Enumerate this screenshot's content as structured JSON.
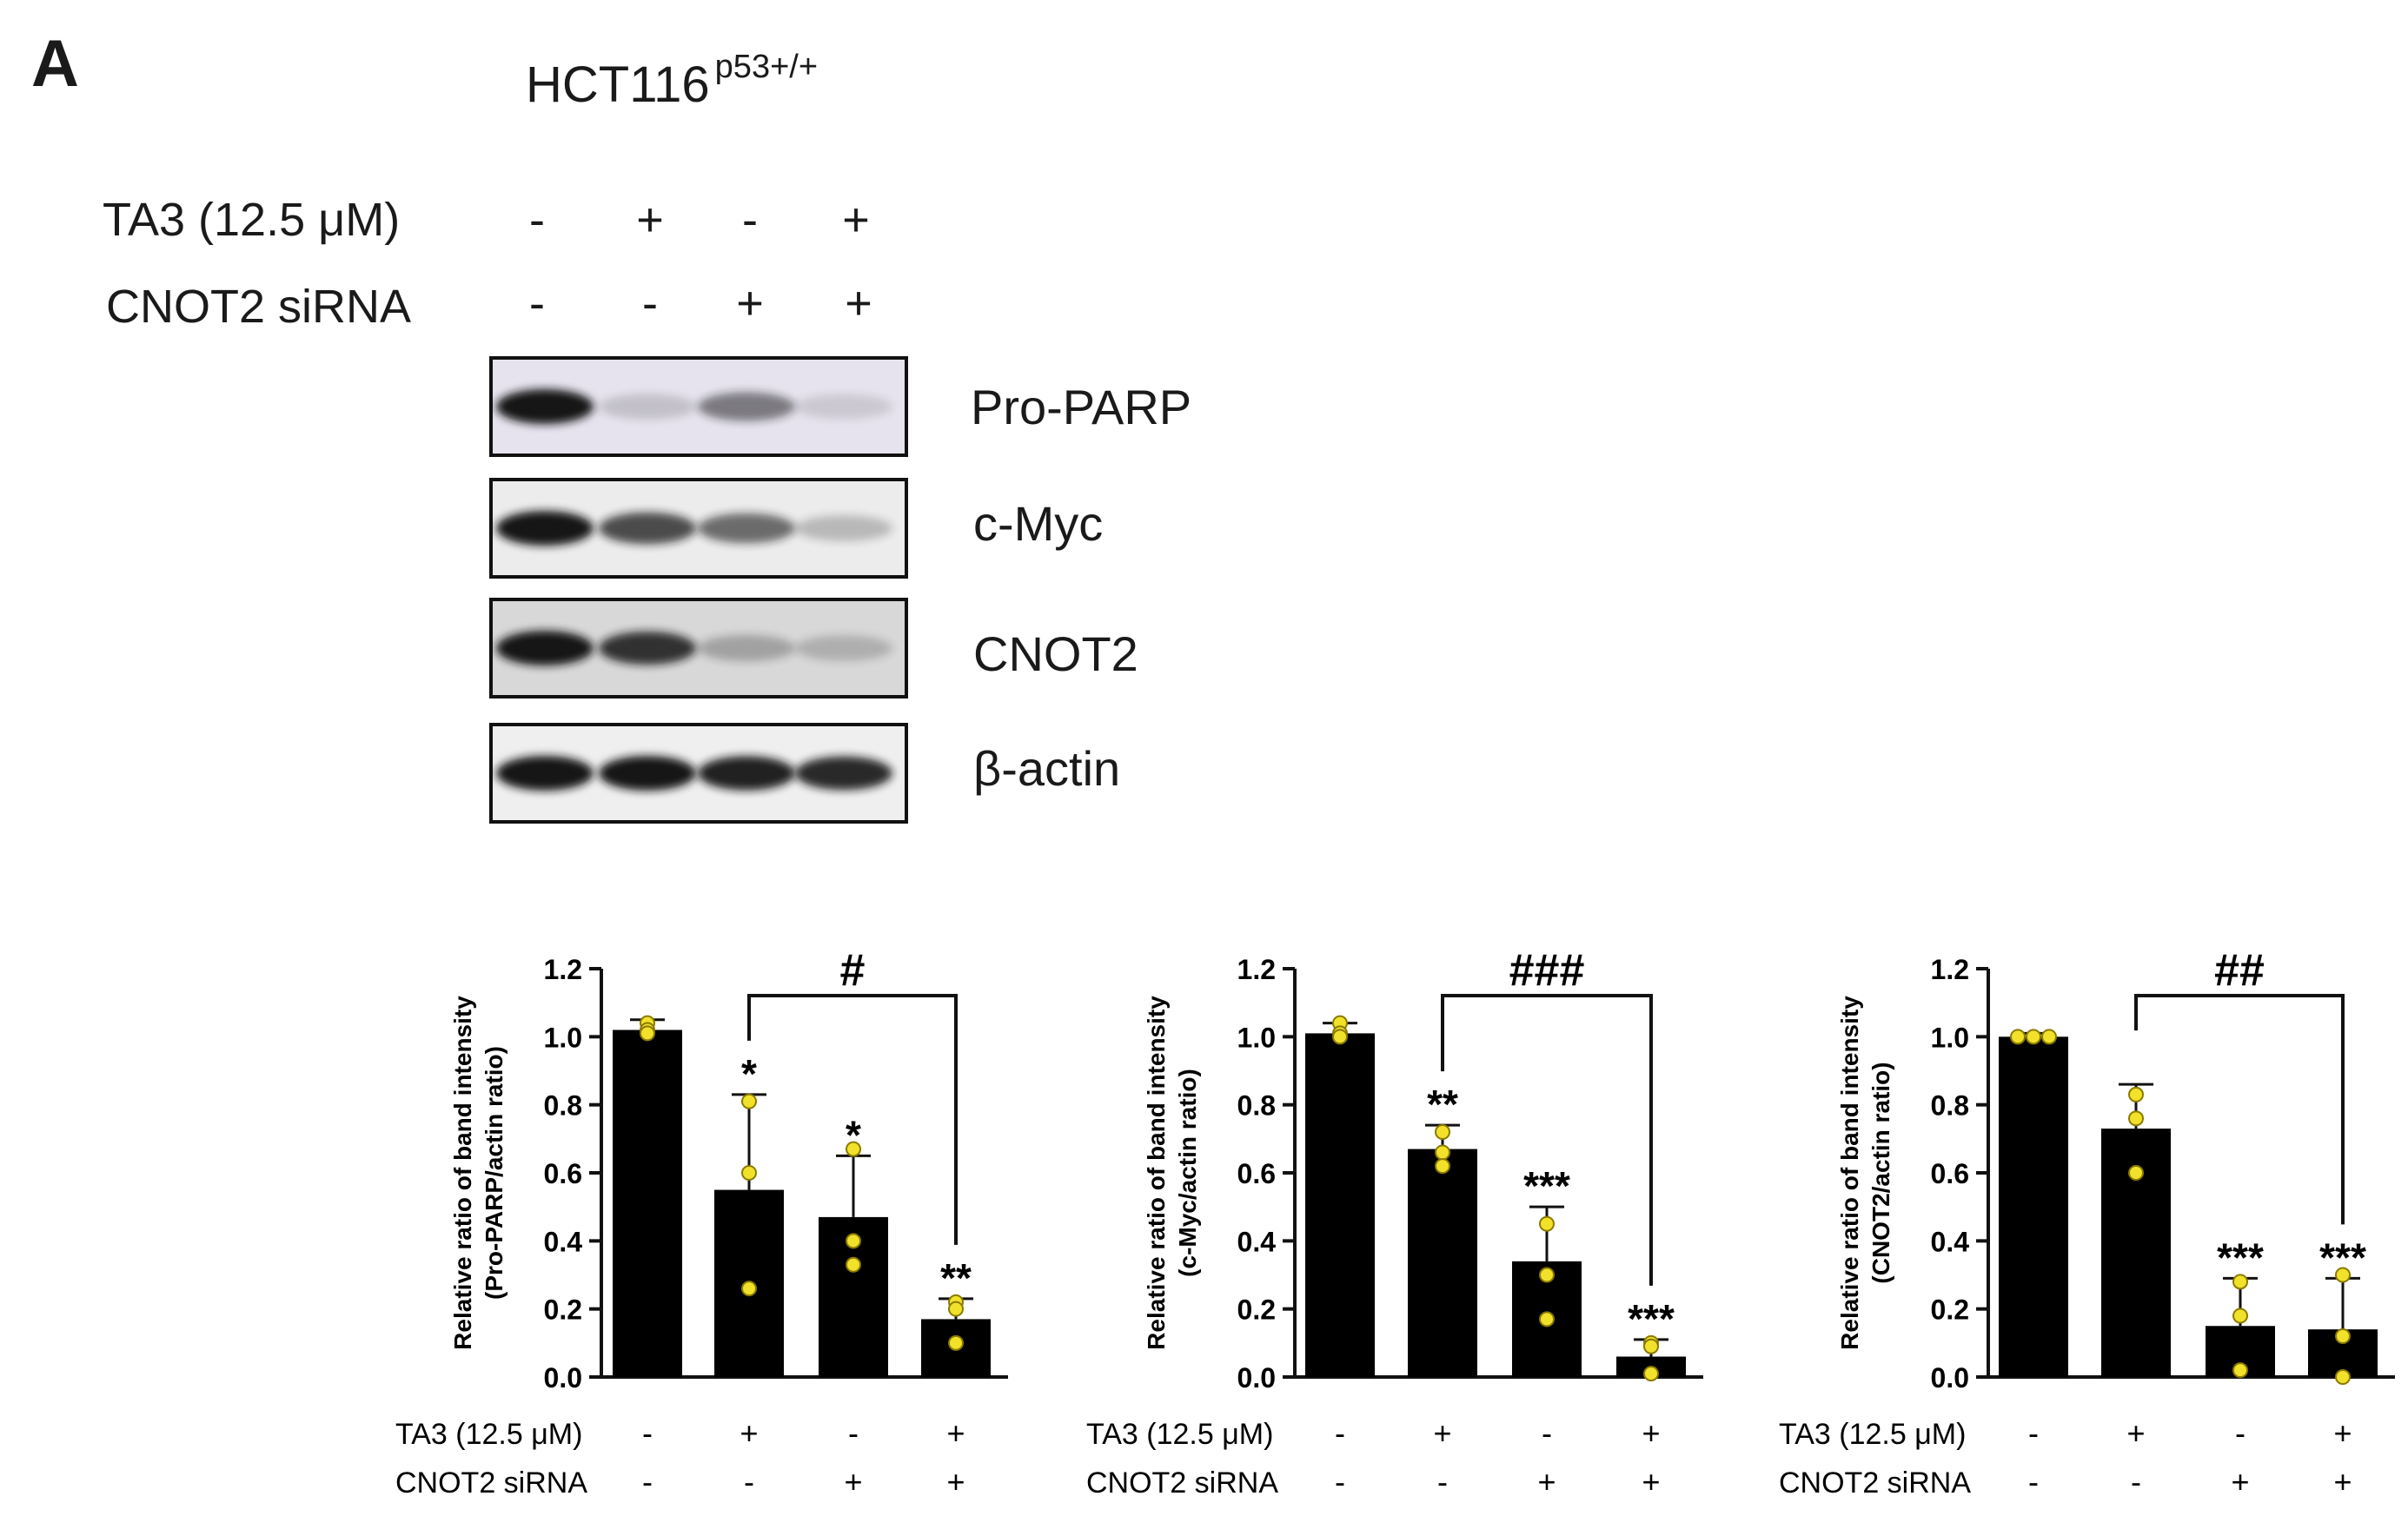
{
  "panel_letter": "A",
  "cell_line": {
    "name": "HCT116",
    "genotype": "p53+/+"
  },
  "conditions": [
    {
      "label": "TA3 (12.5 μM)",
      "symbols": [
        "-",
        "+",
        "-",
        "+"
      ]
    },
    {
      "label": "CNOT2 siRNA",
      "symbols": [
        "-",
        "-",
        "+",
        "+"
      ]
    }
  ],
  "blots": [
    {
      "label": "Pro-PARP",
      "bg": "#e6e3ee",
      "intensities": [
        1.0,
        0.08,
        0.45,
        0.03
      ]
    },
    {
      "label": "c-Myc",
      "bg": "#ececec",
      "intensities": [
        1.0,
        0.72,
        0.55,
        0.15
      ]
    },
    {
      "label": "CNOT2",
      "bg": "#d8d8d8",
      "intensities": [
        1.0,
        0.85,
        0.2,
        0.12
      ]
    },
    {
      "label": "β-actin",
      "bg": "#efefef",
      "intensities": [
        1.0,
        1.0,
        0.95,
        0.9
      ]
    }
  ],
  "colors": {
    "bar": "#000000",
    "point": "#f2e12a",
    "point_edge": "#8a7a00",
    "band": "#141414"
  },
  "chart_data": [
    {
      "type": "bar",
      "ylabel": [
        "Relative ratio of band intensity",
        "(Pro-PARP/actin ratio)"
      ],
      "ylim": [
        0,
        1.2
      ],
      "yticks": [
        "0.0",
        "0.2",
        "0.4",
        "0.6",
        "0.8",
        "1.0",
        "1.2"
      ],
      "values": [
        1.02,
        0.55,
        0.47,
        0.17
      ],
      "errors": [
        0.03,
        0.28,
        0.18,
        0.06
      ],
      "points": [
        [
          1.04,
          1.02,
          1.01
        ],
        [
          0.81,
          0.6,
          0.26
        ],
        [
          0.67,
          0.4,
          0.33
        ],
        [
          0.22,
          0.2,
          0.1
        ]
      ],
      "significance": [
        "",
        "*",
        "*",
        "**"
      ],
      "bracket": {
        "from": 1,
        "to": 3,
        "label": "#"
      },
      "rows": [
        {
          "label": "TA3 (12.5 μM)",
          "symbols": [
            "-",
            "+",
            "-",
            "+"
          ]
        },
        {
          "label": "CNOT2 siRNA",
          "symbols": [
            "-",
            "-",
            "+",
            "+"
          ]
        }
      ]
    },
    {
      "type": "bar",
      "ylabel": [
        "Relative ratio of band intensity",
        "(c-Myc/actin ratio)"
      ],
      "ylim": [
        0,
        1.2
      ],
      "yticks": [
        "0.0",
        "0.2",
        "0.4",
        "0.6",
        "0.8",
        "1.0",
        "1.2"
      ],
      "values": [
        1.01,
        0.67,
        0.34,
        0.06
      ],
      "errors": [
        0.03,
        0.07,
        0.16,
        0.05
      ],
      "points": [
        [
          1.04,
          1.01,
          1.0
        ],
        [
          0.72,
          0.66,
          0.62
        ],
        [
          0.45,
          0.3,
          0.17
        ],
        [
          0.1,
          0.09,
          0.01
        ]
      ],
      "significance": [
        "",
        "**",
        "***",
        "***"
      ],
      "bracket": {
        "from": 1,
        "to": 3,
        "label": "###"
      },
      "rows": [
        {
          "label": "TA3 (12.5 μM)",
          "symbols": [
            "-",
            "+",
            "-",
            "+"
          ]
        },
        {
          "label": "CNOT2 siRNA",
          "symbols": [
            "-",
            "-",
            "+",
            "+"
          ]
        }
      ]
    },
    {
      "type": "bar",
      "ylabel": [
        "Relative ratio of band intensity",
        "(CNOT2/actin ratio)"
      ],
      "ylim": [
        0,
        1.2
      ],
      "yticks": [
        "0.0",
        "0.2",
        "0.4",
        "0.6",
        "0.8",
        "1.0",
        "1.2"
      ],
      "values": [
        1.0,
        0.73,
        0.15,
        0.14
      ],
      "errors": [
        0.01,
        0.13,
        0.14,
        0.15
      ],
      "points": [
        [
          1.0,
          1.0,
          1.0
        ],
        [
          0.83,
          0.76,
          0.6
        ],
        [
          0.28,
          0.18,
          0.02
        ],
        [
          0.3,
          0.12,
          0.0
        ]
      ],
      "significance": [
        "",
        "",
        "***",
        "***"
      ],
      "bracket": {
        "from": 1,
        "to": 3,
        "label": "##"
      },
      "rows": [
        {
          "label": "TA3 (12.5 μM)",
          "symbols": [
            "-",
            "+",
            "-",
            "+"
          ]
        },
        {
          "label": "CNOT2 siRNA",
          "symbols": [
            "-",
            "-",
            "+",
            "+"
          ]
        }
      ]
    }
  ]
}
